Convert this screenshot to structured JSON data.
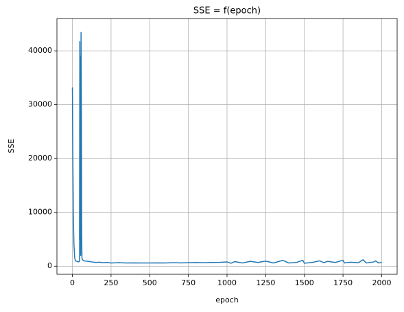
{
  "chart_data": {
    "type": "line",
    "title": "SSE = f(epoch)",
    "x_label": "epoch",
    "y_label": "SSE",
    "x": [
      0,
      3,
      6,
      10,
      15,
      20,
      30,
      40,
      46,
      48,
      50,
      52,
      54,
      56,
      58,
      60,
      62,
      65,
      75,
      100,
      125,
      150,
      175,
      200,
      225,
      250,
      300,
      350,
      400,
      450,
      500,
      550,
      600,
      650,
      700,
      750,
      800,
      850,
      900,
      950,
      1000,
      1025,
      1050,
      1100,
      1150,
      1200,
      1250,
      1300,
      1350,
      1360,
      1400,
      1450,
      1490,
      1500,
      1550,
      1600,
      1625,
      1650,
      1700,
      1750,
      1760,
      1800,
      1850,
      1880,
      1900,
      1950,
      1960,
      1980,
      2000
    ],
    "series": [
      {
        "name": "SSE",
        "color": "#1f77b4",
        "values": [
          33200,
          20000,
          10000,
          4000,
          1500,
          1000,
          900,
          800,
          900,
          41700,
          5000,
          39000,
          2000,
          43400,
          31000,
          6000,
          1500,
          1200,
          1000,
          900,
          800,
          700,
          750,
          650,
          700,
          600,
          650,
          600,
          620,
          600,
          600,
          620,
          600,
          650,
          620,
          650,
          680,
          650,
          700,
          720,
          800,
          550,
          850,
          600,
          900,
          700,
          950,
          600,
          1000,
          1100,
          600,
          700,
          1100,
          550,
          700,
          1000,
          650,
          900,
          700,
          1100,
          600,
          750,
          650,
          1200,
          600,
          800,
          1000,
          600,
          700
        ]
      }
    ],
    "xlim": [
      -100,
      2100
    ],
    "xticks": [
      0,
      250,
      500,
      750,
      1000,
      1250,
      1500,
      1750,
      2000
    ],
    "ylim": [
      -1500,
      46000
    ],
    "yticks": [
      0,
      10000,
      20000,
      30000,
      40000
    ],
    "grid": true
  }
}
